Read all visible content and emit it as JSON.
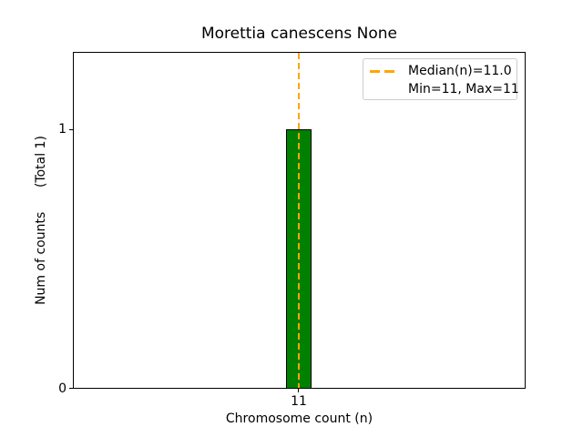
{
  "chart_data": {
    "type": "bar",
    "title": "Morettia canescens None",
    "xlabel": "Chromosome count (n)",
    "ylabel": "Num of counts      (Total 1)",
    "categories": [
      "11"
    ],
    "values": [
      1
    ],
    "total_counts": 1,
    "ylim": [
      0,
      1.3
    ],
    "x_ticks": [
      "11"
    ],
    "y_ticks": [
      "0",
      "1"
    ],
    "grid": "off",
    "bar_color": "#008000",
    "bar_edge_color": "#000000",
    "median_line": {
      "value": 11.0,
      "color": "#FFA500",
      "style": "dashed",
      "orientation": "vertical"
    },
    "legend": {
      "position": "upper right",
      "border_color": "#cccccc",
      "entries": [
        {
          "label": "Median(n)=11.0",
          "handle": "orange-dashed-line"
        },
        {
          "label": "Min=11, Max=11",
          "handle": "none"
        }
      ]
    }
  }
}
